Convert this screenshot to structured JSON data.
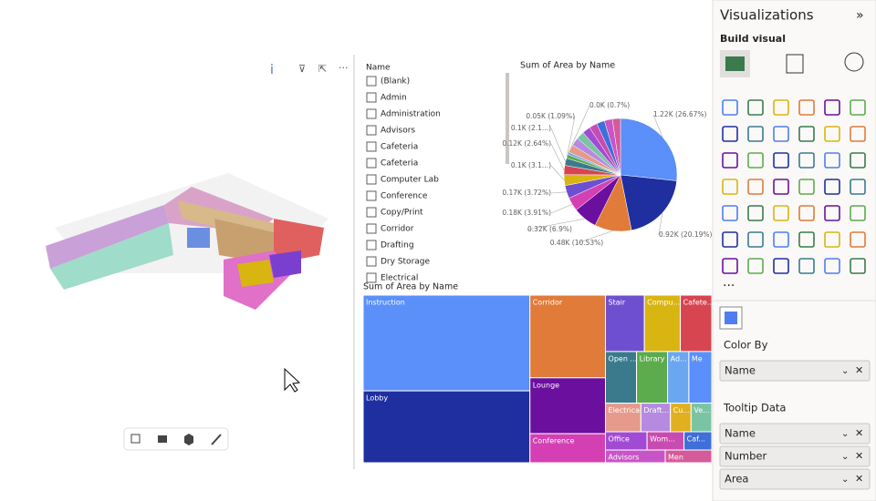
{
  "slicer": {
    "title": "Name",
    "items": [
      "(Blank)",
      "Admin",
      "Administration",
      "Advisors",
      "Cafeteria",
      "Cafeteria",
      "Computer Lab",
      "Conference",
      "Copy/Print",
      "Corridor",
      "Drafting",
      "Dry Storage",
      "Electrical"
    ]
  },
  "pie": {
    "type": "pie",
    "title": "Sum of Area by Name",
    "values": [
      26.67,
      20.19,
      10.53,
      6.9,
      3.91,
      3.72,
      3.1,
      2.64,
      2.1,
      1.09,
      0.7,
      2.3,
      2.3,
      2.3,
      2.3,
      2.3,
      2.3,
      2.3,
      2.3
    ],
    "value_labels": [
      "1.22K (26.67%)",
      "0.92K (20.19%)",
      "0.48K (10.53%)",
      "0.32K (6.9%)",
      "0.18K (3.91%)",
      "0.17K (3.72%)",
      "0.1K (3.1...)",
      "0.12K (2.64%)",
      "0.1K (2.1...)",
      "0.05K (1.09%)",
      "0.0K (0.7%)",
      null,
      null,
      null,
      null,
      null,
      null,
      null,
      null
    ],
    "colors": [
      "#5b8ff9",
      "#1f2fa0",
      "#e07b39",
      "#6b0f9e",
      "#d43fb4",
      "#6e4fd0",
      "#d9b511",
      "#d64550",
      "#3a7a8c",
      "#5cab4c",
      "#6aa7f0",
      "#e59a8c",
      "#b58ae0",
      "#7ac4a4",
      "#a14bd4",
      "#c84cb0",
      "#3f6fd8",
      "#c855c8",
      "#d45a9a"
    ]
  },
  "treemap": {
    "title": "Sum of Area by Name",
    "names": [
      "Instruction",
      "Lobby",
      "Corridor",
      "Lounge",
      "Conference",
      "Stair",
      "Compu...",
      "Cafete...",
      "Open ...",
      "Library",
      "Ad...",
      "Me",
      "Electrical",
      "Draft...",
      "Cu...",
      "Ve...",
      "Office",
      "Wom...",
      "Caf...",
      "Advisors",
      "Men"
    ],
    "values": [
      189,
      142,
      74,
      50,
      26,
      26,
      24,
      21,
      19,
      19,
      13,
      14,
      12,
      10,
      7,
      7,
      9,
      8,
      6,
      9,
      7
    ],
    "colors": [
      "#5b8ff9",
      "#1f2fa0",
      "#e07b39",
      "#6b0f9e",
      "#d43fb4",
      "#6e4fd0",
      "#d9b511",
      "#d64550",
      "#3a7a8c",
      "#5cab4c",
      "#6aa7f0",
      "#5b8ff9",
      "#e59a8c",
      "#b58ae0",
      "#e0b020",
      "#7ac4a4",
      "#a14bd4",
      "#c84cb0",
      "#3f6fd8",
      "#c855c8",
      "#d45a9a"
    ]
  },
  "pane": {
    "title": "Visualizations",
    "build": "Build visual",
    "more": "···",
    "color_by": "Color By",
    "color_fields": [
      "Name"
    ],
    "tooltip": "Tooltip Data",
    "tooltip_fields": [
      "Name",
      "Number",
      "Area"
    ]
  }
}
